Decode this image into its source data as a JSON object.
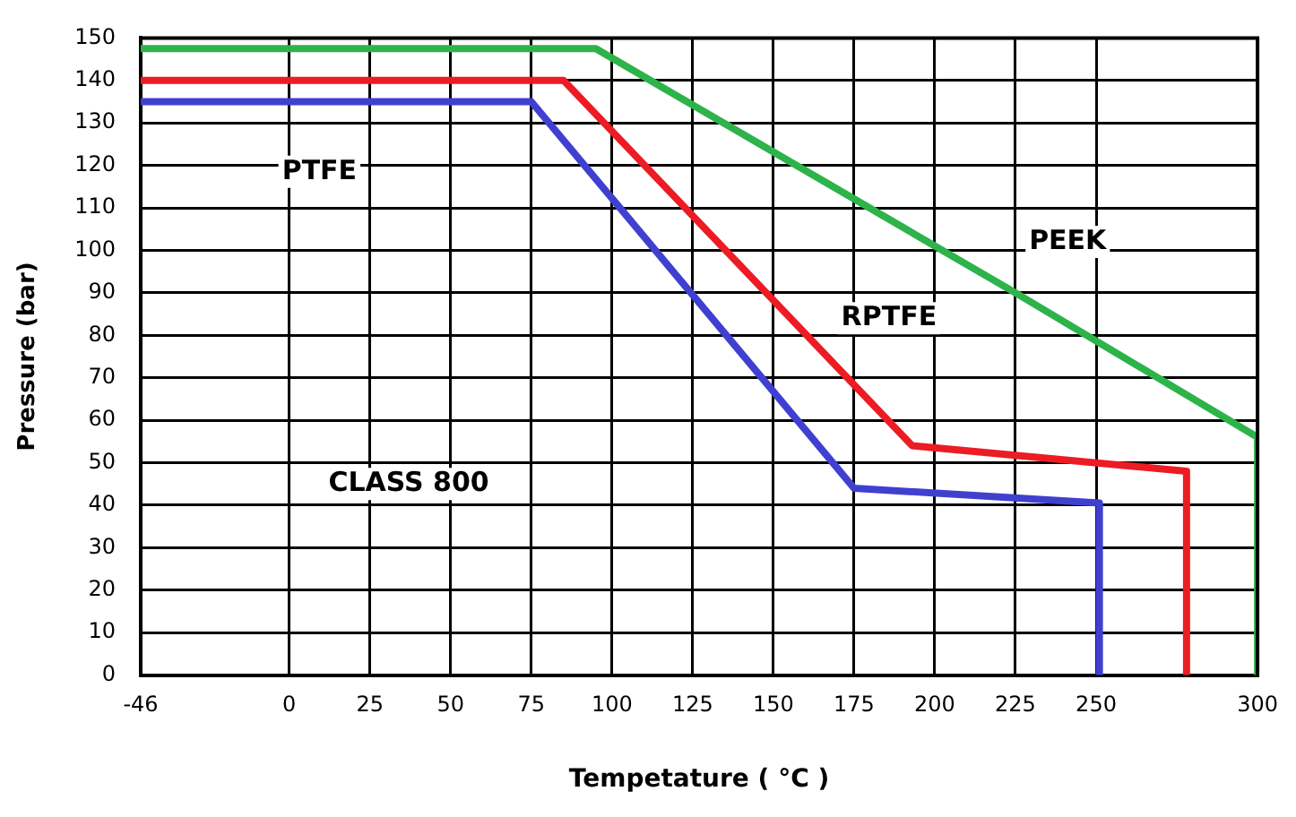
{
  "chart_data": {
    "type": "line",
    "xlabel": "Tempetature ( °C )",
    "ylabel": "Pressure (bar)",
    "xlim": [
      -46,
      300
    ],
    "xticks": [
      -46,
      0,
      25,
      50,
      75,
      100,
      125,
      150,
      175,
      200,
      225,
      250,
      300
    ],
    "ylim": [
      0,
      150
    ],
    "yticks": [
      0,
      10,
      20,
      30,
      40,
      50,
      60,
      70,
      80,
      90,
      100,
      110,
      120,
      130,
      140,
      150
    ],
    "grid": true,
    "legend": false,
    "marker": "none",
    "line_style": "solid",
    "series": [
      {
        "name": "PEEK",
        "color": "#2db34a",
        "x": [
          -46,
          95,
          225,
          300,
          300
        ],
        "values": [
          147.5,
          147.5,
          90,
          56,
          0
        ]
      },
      {
        "name": "RPTFE",
        "color": "#ec1c24",
        "x": [
          -46,
          85,
          193,
          278,
          278
        ],
        "values": [
          140,
          140,
          54,
          48,
          0
        ]
      },
      {
        "name": "PTFE",
        "color": "#4040d0",
        "x": [
          -46,
          75,
          175,
          251,
          251
        ],
        "values": [
          135,
          135,
          44,
          40.5,
          0
        ]
      }
    ],
    "annotations": [
      "CLASS 800"
    ]
  }
}
